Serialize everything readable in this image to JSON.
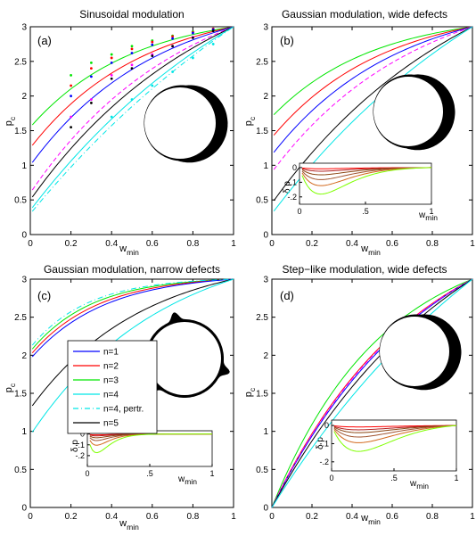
{
  "colors": {
    "n1": "#0000ff",
    "n2": "#ff0000",
    "n3": "#00e600",
    "n4": "#00e6e6",
    "n4_pertr": "#00e6e6",
    "n5": "#000000",
    "pink_dashed": "#ff00ff",
    "inset_curves": [
      "#ff0000",
      "#b22222",
      "#8b4513",
      "#a0522d",
      "#d2691e",
      "#7fff00"
    ]
  },
  "legend": {
    "placement": "panel (c), center-left",
    "entries": [
      {
        "key": "n1",
        "label": "n=1",
        "style": "solid"
      },
      {
        "key": "n2",
        "label": "n=2",
        "style": "solid"
      },
      {
        "key": "n3",
        "label": "n=3",
        "style": "solid"
      },
      {
        "key": "n4",
        "label": "n=4",
        "style": "solid"
      },
      {
        "key": "n4_pertr",
        "label": "n=4, pertr.",
        "style": "dash-dot"
      },
      {
        "key": "n5",
        "label": "n=5",
        "style": "solid"
      }
    ]
  },
  "chart_data": [
    {
      "type": "line",
      "title": "Sinusoidal modulation",
      "panel_label": "(a)",
      "xlabel": "w",
      "xlabel_sub": "min",
      "ylabel": "p",
      "ylabel_sub": "c",
      "xlim": [
        0,
        1
      ],
      "ylim": [
        0,
        3
      ],
      "xticks": [
        0,
        0.2,
        0.4,
        0.6,
        0.8,
        1
      ],
      "yticks": [
        0,
        0.5,
        1,
        1.5,
        2,
        2.5,
        3
      ],
      "shape_symmetry": 1,
      "series": [
        {
          "key": "n3",
          "p0": 1.55,
          "k": 0.5
        },
        {
          "key": "n2",
          "p0": 1.25,
          "k": 0.55
        },
        {
          "key": "n1",
          "p0": 1.0,
          "k": 0.62
        },
        {
          "key": "pink_dashed",
          "p0": 0.6,
          "k": 0.75
        },
        {
          "key": "n5",
          "p0": 0.5,
          "k": 0.9
        },
        {
          "key": "n4",
          "p0": 0.35,
          "k": 1.25
        },
        {
          "key": "n4_pertr",
          "p0": 0.3,
          "k": 1.7
        }
      ],
      "markers": [
        {
          "key": "n3",
          "x": [
            0.2,
            0.3,
            0.4,
            0.5,
            0.6,
            0.7,
            0.8,
            0.9
          ],
          "y": [
            2.3,
            2.48,
            2.6,
            2.72,
            2.8,
            2.87,
            2.93,
            2.97
          ]
        },
        {
          "key": "n2",
          "x": [
            0.2,
            0.3,
            0.4,
            0.5,
            0.6,
            0.7,
            0.8,
            0.9
          ],
          "y": [
            2.15,
            2.4,
            2.55,
            2.68,
            2.78,
            2.86,
            2.92,
            2.97
          ]
        },
        {
          "key": "n1",
          "x": [
            0.2,
            0.3,
            0.4,
            0.5,
            0.6,
            0.7,
            0.8,
            0.9
          ],
          "y": [
            2.0,
            2.28,
            2.48,
            2.62,
            2.74,
            2.83,
            2.91,
            2.96
          ]
        },
        {
          "key": "pink_dashed",
          "x": [
            0.2,
            0.3,
            0.4,
            0.5,
            0.6,
            0.7,
            0.8
          ],
          "y": [
            1.7,
            1.95,
            2.3,
            2.45,
            2.6,
            2.72,
            2.85
          ]
        },
        {
          "key": "n5",
          "x": [
            0.2,
            0.3,
            0.4,
            0.5,
            0.6,
            0.7,
            0.8,
            0.9
          ],
          "y": [
            1.55,
            1.9,
            2.25,
            2.4,
            2.58,
            2.72,
            2.84,
            2.94
          ]
        },
        {
          "key": "n4",
          "x": [
            0.4,
            0.5,
            0.6,
            0.7,
            0.8,
            0.9
          ],
          "y": [
            1.7,
            1.95,
            2.15,
            2.35,
            2.55,
            2.75
          ]
        }
      ],
      "inset": null
    },
    {
      "type": "line",
      "title": "Gaussian modulation, wide defects",
      "panel_label": "(b)",
      "xlabel": "w",
      "xlabel_sub": "min",
      "ylabel": "p",
      "ylabel_sub": "c",
      "xlim": [
        0,
        1
      ],
      "ylim": [
        0,
        3
      ],
      "xticks": [
        0,
        0.2,
        0.4,
        0.6,
        0.8,
        1
      ],
      "yticks": [
        0,
        0.5,
        1,
        1.5,
        2,
        2.5,
        3
      ],
      "shape_symmetry": 1,
      "series": [
        {
          "key": "n3",
          "p0": 1.7,
          "k": 0.5
        },
        {
          "key": "n2",
          "p0": 1.4,
          "k": 0.55
        },
        {
          "key": "n1",
          "p0": 1.15,
          "k": 0.62
        },
        {
          "key": "pink_dashed",
          "p0": 0.9,
          "k": 0.72
        },
        {
          "key": "n5",
          "p0": 0.45,
          "k": 1.0
        },
        {
          "key": "n4",
          "p0": 0.3,
          "k": 1.35
        }
      ],
      "markers": [],
      "inset": {
        "xlim": [
          0,
          1
        ],
        "ylim": [
          -0.25,
          0.03
        ],
        "xticks": [
          0,
          0.5,
          1
        ],
        "yticks": [
          0,
          -0.1,
          -0.2
        ],
        "xlabel": "w",
        "xlabel_sub": "min",
        "ylabel": "δ p",
        "curves": [
          {
            "d": 0.01,
            "xm": 0.2
          },
          {
            "d": 0.03,
            "xm": 0.2
          },
          {
            "d": 0.06,
            "xm": 0.2
          },
          {
            "d": 0.1,
            "xm": 0.2
          },
          {
            "d": 0.15,
            "xm": 0.2
          },
          {
            "d": 0.22,
            "xm": 0.2
          }
        ]
      }
    },
    {
      "type": "line",
      "title": "Gaussian modulation, narrow defects",
      "panel_label": "(c)",
      "xlabel": "w",
      "xlabel_sub": "min",
      "ylabel": "p",
      "ylabel_sub": "c",
      "xlim": [
        0,
        1
      ],
      "ylim": [
        0,
        3
      ],
      "xticks": [
        0,
        0.2,
        0.4,
        0.6,
        0.8,
        1
      ],
      "yticks": [
        0,
        0.5,
        1,
        1.5,
        2,
        2.5,
        3
      ],
      "shape_symmetry": 3,
      "series": [
        {
          "key": "n3",
          "p0": 2.05,
          "k": 0.3
        },
        {
          "key": "n2",
          "p0": 2.0,
          "k": 0.33
        },
        {
          "key": "n1",
          "p0": 1.95,
          "k": 0.36
        },
        {
          "key": "n4_pertr",
          "p0": 2.1,
          "k": 0.28
        },
        {
          "key": "n5",
          "p0": 1.3,
          "k": 0.55
        },
        {
          "key": "n4",
          "p0": 0.95,
          "k": 0.65
        }
      ],
      "markers": [],
      "inset": {
        "xlim": [
          0,
          1
        ],
        "ylim": [
          -0.3,
          0.03
        ],
        "xticks": [
          0,
          0.5,
          1
        ],
        "yticks": [
          0,
          -0.1,
          -0.2
        ],
        "xlabel": "w",
        "xlabel_sub": "min",
        "ylabel": "δ p",
        "curves": [
          {
            "d": 0.01,
            "xm": 0.08
          },
          {
            "d": 0.02,
            "xm": 0.08
          },
          {
            "d": 0.04,
            "xm": 0.08
          },
          {
            "d": 0.07,
            "xm": 0.08
          },
          {
            "d": 0.12,
            "xm": 0.08
          },
          {
            "d": 0.2,
            "xm": 0.08
          }
        ]
      }
    },
    {
      "type": "line",
      "title": "Step−like modulation, wide defects",
      "panel_label": "(d)",
      "xlabel": "w",
      "xlabel_sub": "min",
      "ylabel": "p",
      "ylabel_sub": "c",
      "xlim": [
        0,
        1
      ],
      "ylim": [
        0,
        3
      ],
      "xticks": [
        0,
        0.2,
        0.4,
        0.6,
        0.8,
        1
      ],
      "yticks": [
        0,
        0.5,
        1,
        1.5,
        2,
        2.5,
        3
      ],
      "shape_symmetry": 1,
      "series": [
        {
          "key": "n3",
          "p0": 0.0,
          "k": 0.55
        },
        {
          "key": "n2",
          "p0": 0.0,
          "k": 0.72
        },
        {
          "key": "n1",
          "p0": 0.0,
          "k": 0.78
        },
        {
          "key": "pink_dashed",
          "p0": 0.0,
          "k": 0.74
        },
        {
          "key": "n5",
          "p0": 0.0,
          "k": 0.95
        },
        {
          "key": "n4",
          "p0": 0.0,
          "k": 1.4
        }
      ],
      "markers": [],
      "inset": {
        "xlim": [
          0,
          1
        ],
        "ylim": [
          -0.25,
          0.03
        ],
        "xticks": [
          0,
          0.5,
          1
        ],
        "yticks": [
          0,
          -0.1,
          -0.2
        ],
        "xlabel": "w",
        "xlabel_sub": "min",
        "ylabel": "δ p",
        "curves": [
          {
            "d": 0.01,
            "xm": 0.3
          },
          {
            "d": 0.03,
            "xm": 0.3
          },
          {
            "d": 0.05,
            "xm": 0.3
          },
          {
            "d": 0.08,
            "xm": 0.3
          },
          {
            "d": 0.12,
            "xm": 0.3
          },
          {
            "d": 0.18,
            "xm": 0.3
          }
        ]
      }
    }
  ]
}
